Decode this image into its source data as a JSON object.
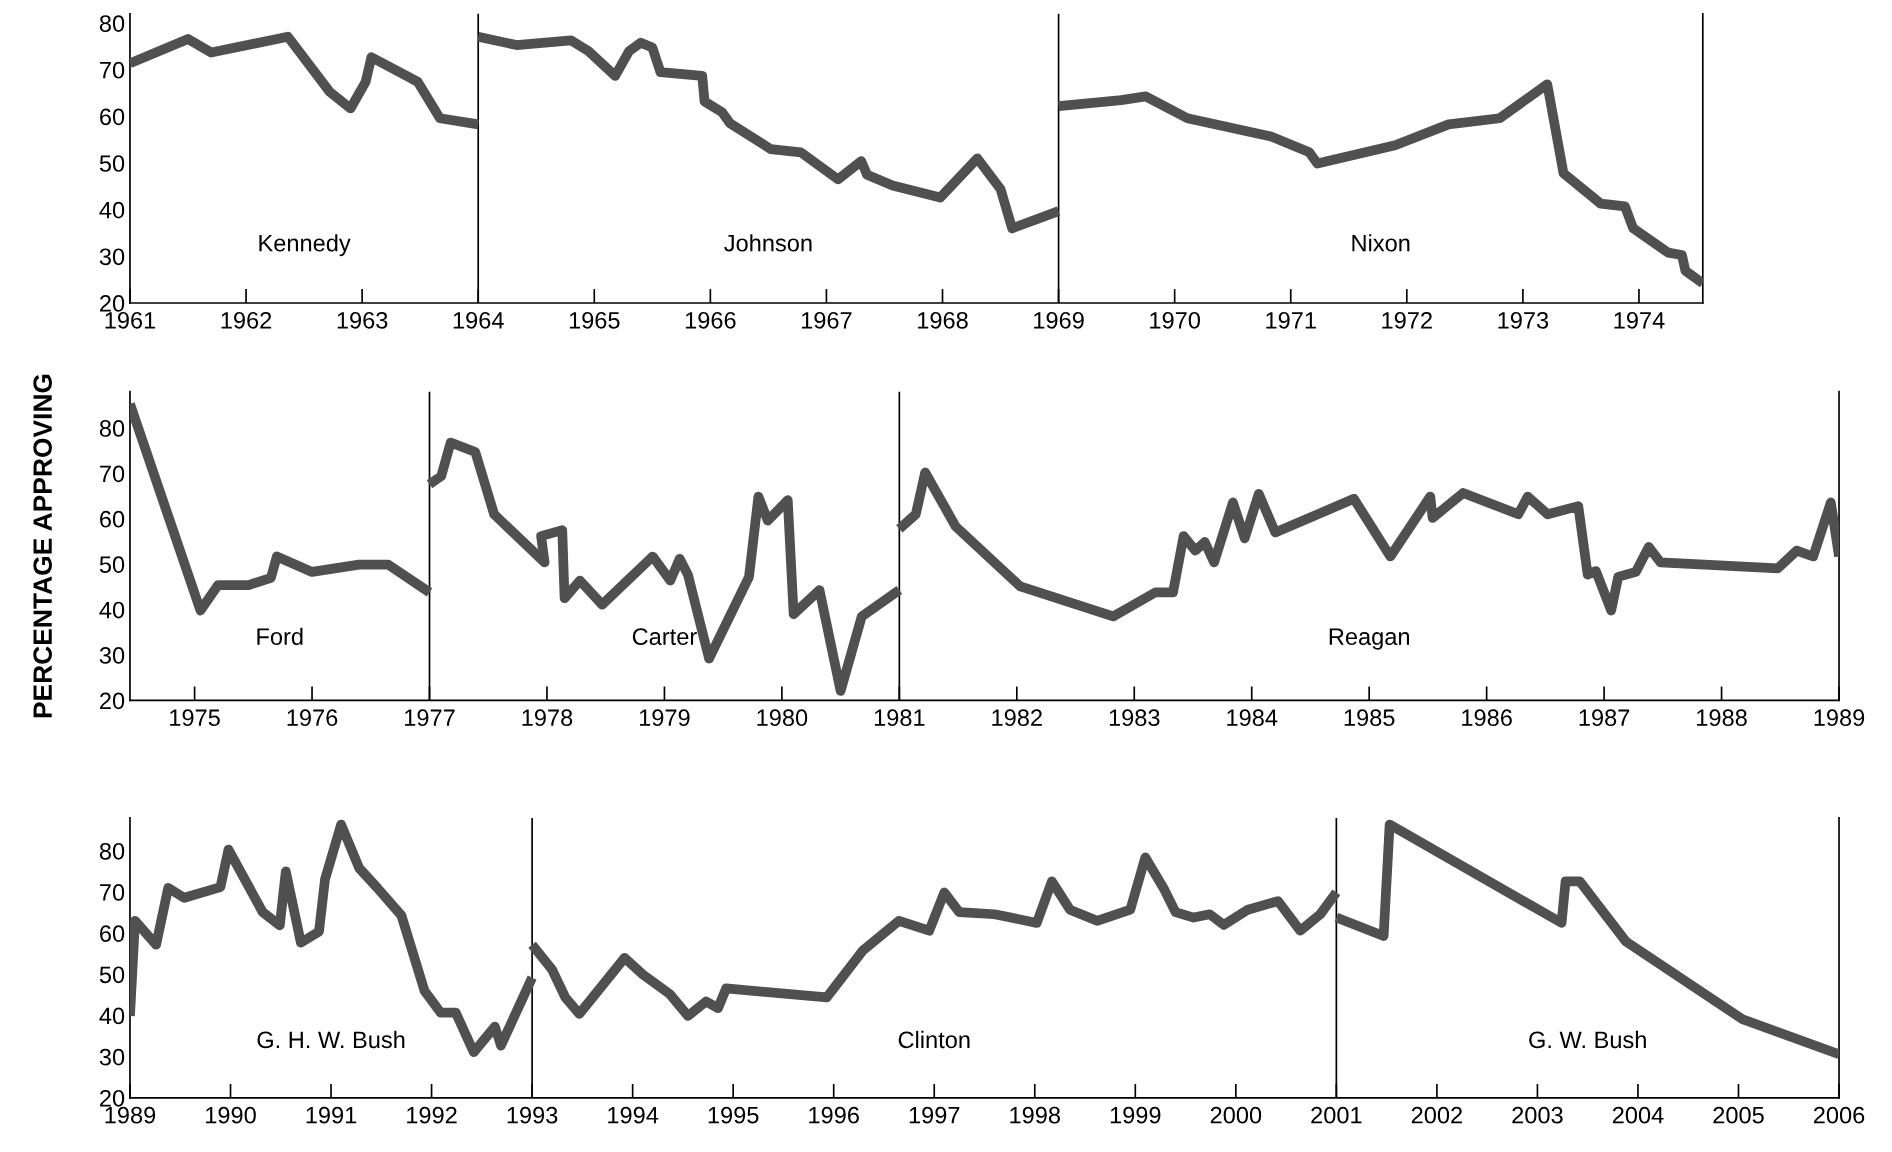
{
  "chart_data": [
    {
      "type": "line",
      "xlim": [
        1961,
        1974.55
      ],
      "ylim": [
        20,
        82
      ],
      "xticks": [
        1961,
        1962,
        1963,
        1964,
        1965,
        1966,
        1967,
        1968,
        1969,
        1970,
        1971,
        1972,
        1973,
        1974
      ],
      "yticks": [
        20,
        30,
        40,
        50,
        60,
        70,
        80
      ],
      "series": [
        {
          "color": "#505050",
          "x": [
            1961.0,
            1961.5,
            1961.7,
            1962.36,
            1962.72,
            1962.9,
            1963.03,
            1963.08,
            1963.48,
            1963.67,
            1964.0
          ],
          "values": [
            71.4,
            76.6,
            73.7,
            77.1,
            65.3,
            61.7,
            67.4,
            72.7,
            67.4,
            59.6,
            58.3
          ]
        },
        {
          "color": "#505050",
          "x": [
            1964.0,
            1964.33,
            1964.8,
            1964.95,
            1965.18,
            1965.3,
            1965.4,
            1965.5,
            1965.57,
            1965.93,
            1965.95,
            1966.1,
            1966.17,
            1966.52,
            1966.78,
            1967.1,
            1967.3,
            1967.35,
            1967.57,
            1967.98,
            1968.3,
            1968.5,
            1968.6,
            1969.0
          ],
          "values": [
            77.1,
            75.3,
            76.3,
            74.0,
            68.7,
            74.0,
            75.8,
            74.8,
            69.5,
            68.7,
            63.2,
            60.9,
            58.5,
            53.0,
            52.3,
            46.5,
            50.4,
            47.5,
            45.2,
            42.6,
            51.0,
            44.4,
            36.0,
            39.7
          ]
        },
        {
          "color": "#505050",
          "x": [
            1969.0,
            1969.54,
            1969.75,
            1970.11,
            1970.83,
            1971.16,
            1971.23,
            1971.9,
            1972.36,
            1972.8,
            1973.21,
            1973.35,
            1973.67,
            1973.88,
            1973.95,
            1974.25,
            1974.37,
            1974.4,
            1974.55
          ],
          "values": [
            62.2,
            63.5,
            64.3,
            59.6,
            55.7,
            52.3,
            49.9,
            53.8,
            58.3,
            59.6,
            66.9,
            47.8,
            41.3,
            40.7,
            36.0,
            30.8,
            30.3,
            26.9,
            24.2
          ]
        }
      ],
      "ref_lines": [
        {
          "axis": "x",
          "value": 1964
        },
        {
          "axis": "x",
          "value": 1969
        }
      ],
      "annotations": [
        "Kennedy",
        "Johnson",
        "Nixon"
      ]
    },
    {
      "type": "line",
      "ylabel": "PERCENTAGE APPROVING",
      "xlim": [
        1974.45,
        1989
      ],
      "ylim": [
        20,
        88
      ],
      "xticks": [
        1975,
        1976,
        1977,
        1978,
        1979,
        1980,
        1981,
        1982,
        1983,
        1984,
        1985,
        1986,
        1987,
        1988,
        1989
      ],
      "yticks": [
        20,
        30,
        40,
        50,
        60,
        70,
        80
      ],
      "series": [
        {
          "color": "#505050",
          "x": [
            1974.45,
            1975.05,
            1975.2,
            1975.46,
            1975.65,
            1975.7,
            1976.0,
            1976.4,
            1976.65,
            1977.0
          ],
          "values": [
            85.3,
            39.8,
            45.4,
            45.4,
            47.0,
            51.7,
            48.3,
            49.9,
            49.9,
            43.8
          ]
        },
        {
          "color": "#505050",
          "x": [
            1977.0,
            1977.1,
            1977.18,
            1977.39,
            1977.55,
            1977.98,
            1977.95,
            1978.13,
            1978.15,
            1978.28,
            1978.47,
            1978.9,
            1979.05,
            1979.13,
            1979.2,
            1979.38,
            1979.72,
            1979.8,
            1979.88,
            1980.05,
            1980.1,
            1980.32,
            1980.5,
            1980.68,
            1981.0
          ],
          "values": [
            67.6,
            69.4,
            76.8,
            74.7,
            61.0,
            50.4,
            56.2,
            57.5,
            42.5,
            46.4,
            41.1,
            51.7,
            46.4,
            51.2,
            47.7,
            29.2,
            47.2,
            64.9,
            59.6,
            64.1,
            39.0,
            44.3,
            22.1,
            38.5,
            44.3
          ]
        },
        {
          "color": "#505050",
          "x": [
            1981.0,
            1981.14,
            1981.22,
            1981.48,
            1982.03,
            1982.82,
            1983.18,
            1983.33,
            1983.42,
            1983.52,
            1983.6,
            1983.68,
            1983.84,
            1983.94,
            1984.06,
            1984.2,
            1984.87,
            1985.18,
            1985.52,
            1985.54,
            1985.8,
            1986.27,
            1986.35,
            1986.52,
            1986.78,
            1986.86,
            1986.93,
            1987.06,
            1987.12,
            1987.27,
            1987.38,
            1987.48,
            1988.48,
            1988.64,
            1988.78,
            1988.93,
            1989.0
          ],
          "values": [
            57.8,
            61.0,
            70.2,
            58.3,
            45.1,
            38.5,
            43.8,
            43.8,
            56.2,
            53.0,
            54.9,
            50.4,
            63.6,
            55.7,
            65.5,
            57.0,
            64.4,
            51.7,
            64.9,
            60.2,
            65.7,
            61.0,
            64.9,
            61.0,
            62.8,
            47.7,
            48.5,
            39.8,
            47.2,
            48.3,
            53.8,
            50.4,
            49.1,
            53.0,
            51.7,
            63.6,
            51.7
          ]
        }
      ],
      "ref_lines": [
        {
          "axis": "x",
          "value": 1977
        },
        {
          "axis": "x",
          "value": 1981
        }
      ],
      "annotations": [
        "Ford",
        "Carter",
        "Reagan"
      ]
    },
    {
      "type": "line",
      "xlim": [
        1989,
        2006
      ],
      "ylim": [
        20,
        88
      ],
      "xticks": [
        1989,
        1990,
        1991,
        1992,
        1993,
        1994,
        1995,
        1996,
        1997,
        1998,
        1999,
        2000,
        2001,
        2002,
        2003,
        2004,
        2005,
        2006
      ],
      "yticks": [
        20,
        30,
        40,
        50,
        60,
        70,
        80
      ],
      "series": [
        {
          "color": "#505050",
          "x": [
            1989.0,
            1989.05,
            1989.26,
            1989.38,
            1989.54,
            1989.9,
            1989.98,
            1990.32,
            1990.49,
            1990.55,
            1990.7,
            1990.88,
            1990.94,
            1991.1,
            1991.28,
            1991.46,
            1991.7,
            1991.93,
            1992.09,
            1992.24,
            1992.42,
            1992.63,
            1992.69,
            1993.0
          ],
          "values": [
            39.9,
            63.0,
            57.2,
            71.0,
            68.6,
            71.2,
            80.3,
            65.1,
            61.9,
            75.0,
            57.7,
            60.4,
            73.1,
            86.4,
            75.8,
            71.0,
            64.3,
            46.0,
            40.7,
            40.7,
            31.1,
            37.3,
            32.7,
            49.2
          ]
        },
        {
          "color": "#505050",
          "x": [
            1993.0,
            1993.2,
            1993.33,
            1993.47,
            1993.92,
            1994.1,
            1994.37,
            1994.55,
            1994.73,
            1994.85,
            1994.93,
            1995.93,
            1996.29,
            1996.65,
            1996.95,
            1997.1,
            1997.25,
            1997.6,
            1998.02,
            1998.17,
            1998.35,
            1998.62,
            1998.95,
            1999.1,
            1999.28,
            1999.4,
            1999.58,
            1999.74,
            1999.88,
            2000.12,
            2000.42,
            2000.64,
            2000.84,
            2001.0
          ],
          "values": [
            57.2,
            51.1,
            44.4,
            40.4,
            54.0,
            50.0,
            45.2,
            39.9,
            43.4,
            41.8,
            46.6,
            44.4,
            55.8,
            63.0,
            60.6,
            69.9,
            65.1,
            64.6,
            62.5,
            72.6,
            65.7,
            63.0,
            65.7,
            78.4,
            71.0,
            65.1,
            63.8,
            64.6,
            62.0,
            65.7,
            67.8,
            60.6,
            64.6,
            69.9
          ]
        },
        {
          "color": "#505050",
          "x": [
            2001.0,
            2001.47,
            2001.53,
            2003.24,
            2003.28,
            2003.42,
            2003.88,
            2005.04,
            2006.0
          ],
          "values": [
            63.8,
            59.3,
            86.4,
            62.5,
            72.6,
            72.6,
            58.0,
            39.1,
            30.6
          ]
        }
      ],
      "ref_lines": [
        {
          "axis": "x",
          "value": 1993
        },
        {
          "axis": "x",
          "value": 2001
        }
      ],
      "annotations": [
        "G. H. W. Bush",
        "Clinton",
        "G. W. Bush"
      ]
    }
  ]
}
